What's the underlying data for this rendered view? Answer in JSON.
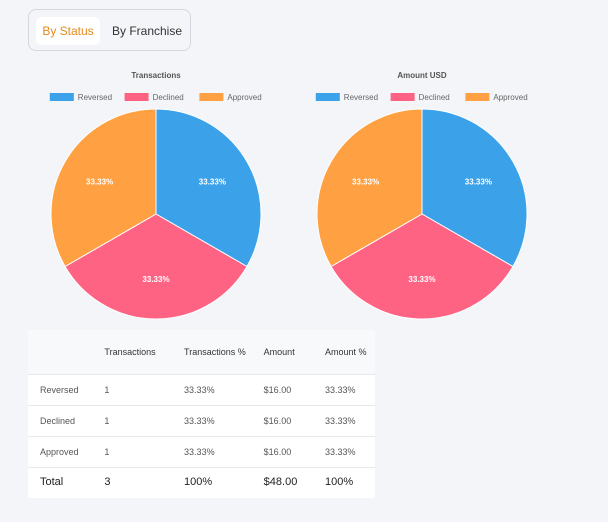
{
  "tabs": [
    {
      "label": "By Status",
      "active": true
    },
    {
      "label": "By Franchise",
      "active": false
    }
  ],
  "colors": {
    "reversed": "#3ba2ea",
    "declined": "#ff6384",
    "approved": "#ffa142",
    "accent": "#e58a1f"
  },
  "chart_data": [
    {
      "type": "pie",
      "title": "Transactions",
      "legend_position": "top",
      "categories": [
        "Reversed",
        "Declined",
        "Approved"
      ],
      "values": [
        1,
        1,
        1
      ],
      "labels": [
        "33.33%",
        "33.33%",
        "33.33%"
      ],
      "colors": [
        "#3ba2ea",
        "#ff6384",
        "#ffa142"
      ]
    },
    {
      "type": "pie",
      "title": "Amount USD",
      "legend_position": "top",
      "categories": [
        "Reversed",
        "Declined",
        "Approved"
      ],
      "values": [
        16,
        16,
        16
      ],
      "labels": [
        "33.33%",
        "33.33%",
        "33.33%"
      ],
      "colors": [
        "#3ba2ea",
        "#ff6384",
        "#ffa142"
      ]
    }
  ],
  "table": {
    "headers": [
      "",
      "Transactions",
      "Transactions %",
      "Amount",
      "Amount %"
    ],
    "rows": [
      [
        "Reversed",
        "1",
        "33.33%",
        "$16.00",
        "33.33%"
      ],
      [
        "Declined",
        "1",
        "33.33%",
        "$16.00",
        "33.33%"
      ],
      [
        "Approved",
        "1",
        "33.33%",
        "$16.00",
        "33.33%"
      ]
    ],
    "total": [
      "Total",
      "3",
      "100%",
      "$48.00",
      "100%"
    ]
  }
}
